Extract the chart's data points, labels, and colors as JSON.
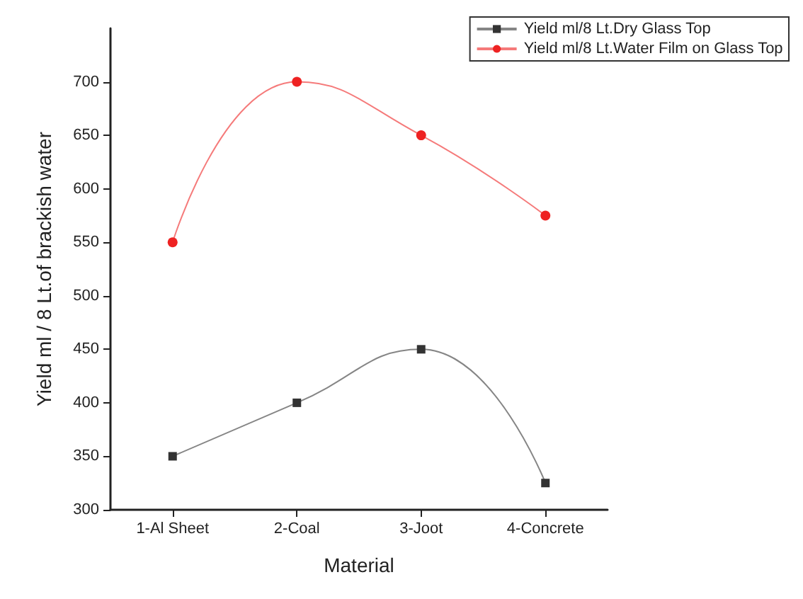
{
  "chart_data": {
    "type": "line",
    "xlabel": "Material",
    "ylabel": "Yield ml / 8 Lt.of brackish water",
    "categories": [
      "1-Al Sheet",
      "2-Coal",
      "3-Joot",
      "4-Concrete"
    ],
    "series": [
      {
        "name": "Yield ml/8 Lt.Dry Glass Top",
        "color": "#333333",
        "marker": "square",
        "values": [
          350,
          400,
          450,
          325
        ]
      },
      {
        "name": "Yield ml/8 Lt.Water Film on Glass Top",
        "color": "#ee2222",
        "marker": "circle",
        "values": [
          550,
          700,
          650,
          575
        ]
      }
    ],
    "ylim": [
      300,
      750
    ],
    "yticks": [
      300,
      350,
      400,
      450,
      500,
      550,
      600,
      650,
      700
    ],
    "grid": false,
    "legend": "top right"
  }
}
